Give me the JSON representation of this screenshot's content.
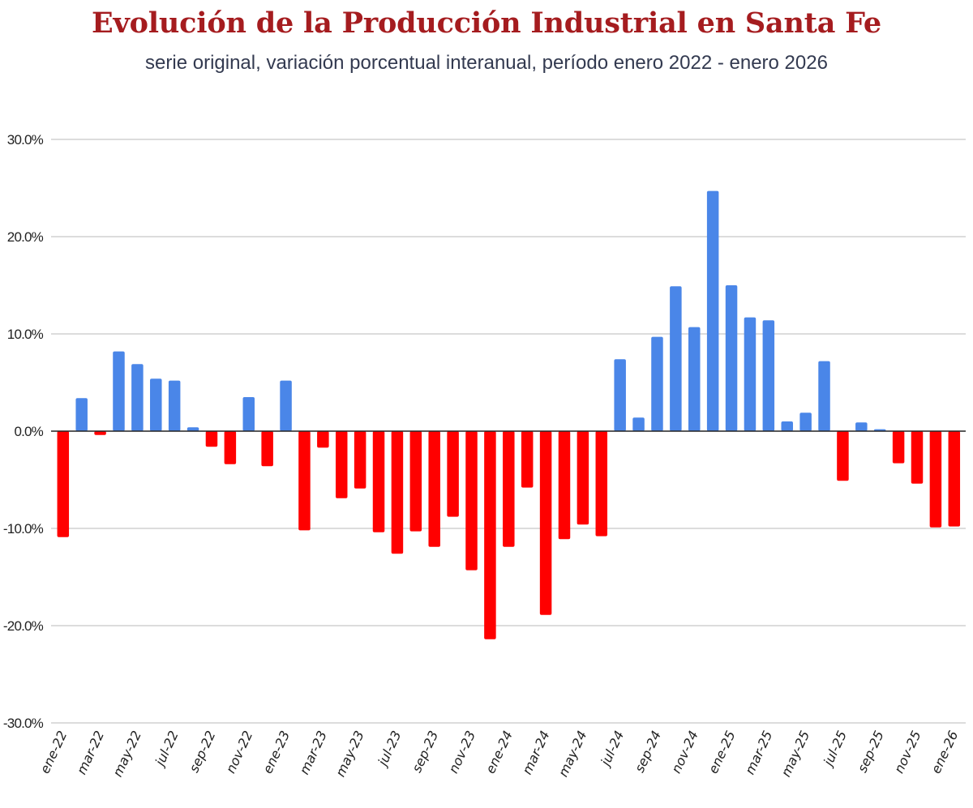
{
  "header": {
    "title": "Evolución de la Producción Industrial en Santa Fe",
    "subtitle": "serie original, variación porcentual interanual, período enero 2022 - enero 2026"
  },
  "colors": {
    "positive": "#4a86e8",
    "negative": "#ff0000",
    "title": "#a51c1f",
    "gridline": "#d0d0d0",
    "zero_line": "#222222"
  },
  "chart_data": {
    "type": "bar",
    "title": "Evolución de la Producción Industrial en Santa Fe",
    "subtitle": "serie original, variación porcentual interanual, período enero 2022 - enero 2026",
    "xlabel": "",
    "ylabel": "",
    "ylim": [
      -30,
      30
    ],
    "yticks": [
      30,
      20,
      10,
      0,
      -10,
      -20,
      -30
    ],
    "ytick_labels": [
      "30.0%",
      "20.0%",
      "10.0%",
      "0.0%",
      "-10.0%",
      "-20.0%",
      "-30.0%"
    ],
    "grid": true,
    "legend": "none",
    "categories": [
      "ene-22",
      "feb-22",
      "mar-22",
      "abr-22",
      "may-22",
      "jun-22",
      "jul-22",
      "ago-22",
      "sep-22",
      "oct-22",
      "nov-22",
      "dic-22",
      "ene-23",
      "feb-23",
      "mar-23",
      "abr-23",
      "may-23",
      "jun-23",
      "jul-23",
      "ago-23",
      "sep-23",
      "oct-23",
      "nov-23",
      "dic-23",
      "ene-24",
      "feb-24",
      "mar-24",
      "abr-24",
      "may-24",
      "jun-24",
      "jul-24",
      "ago-24",
      "sep-24",
      "oct-24",
      "nov-24",
      "dic-24",
      "ene-25",
      "feb-25",
      "mar-25",
      "abr-25",
      "may-25",
      "jun-25",
      "jul-25",
      "ago-25",
      "sep-25",
      "oct-25",
      "nov-25",
      "dic-25",
      "ene-26"
    ],
    "xtick_labels": [
      "ene-22",
      "mar-22",
      "may-22",
      "jul-22",
      "sep-22",
      "nov-22",
      "ene-23",
      "mar-23",
      "may-23",
      "jul-23",
      "sep-23",
      "nov-23",
      "ene-24",
      "mar-24",
      "may-24",
      "jul-24",
      "sep-24",
      "nov-24",
      "ene-25",
      "mar-25",
      "may-25",
      "jul-25",
      "sep-25",
      "nov-25",
      "ene-26"
    ],
    "values": [
      -10.9,
      3.4,
      -0.4,
      8.2,
      6.9,
      5.4,
      5.2,
      0.4,
      -1.6,
      -3.4,
      3.5,
      -3.6,
      5.2,
      -10.2,
      -1.7,
      -6.9,
      -5.9,
      -10.4,
      -12.6,
      -10.3,
      -11.9,
      -8.8,
      -14.3,
      -21.4,
      -11.9,
      -5.8,
      -18.9,
      -11.1,
      -9.6,
      -10.8,
      7.4,
      1.4,
      9.7,
      14.9,
      10.7,
      24.7,
      15.0,
      11.7,
      11.4,
      1.0,
      1.9,
      7.2,
      -5.1,
      0.9,
      0.2,
      -3.3,
      -5.4,
      -9.9,
      -9.8
    ],
    "unit": "%"
  }
}
